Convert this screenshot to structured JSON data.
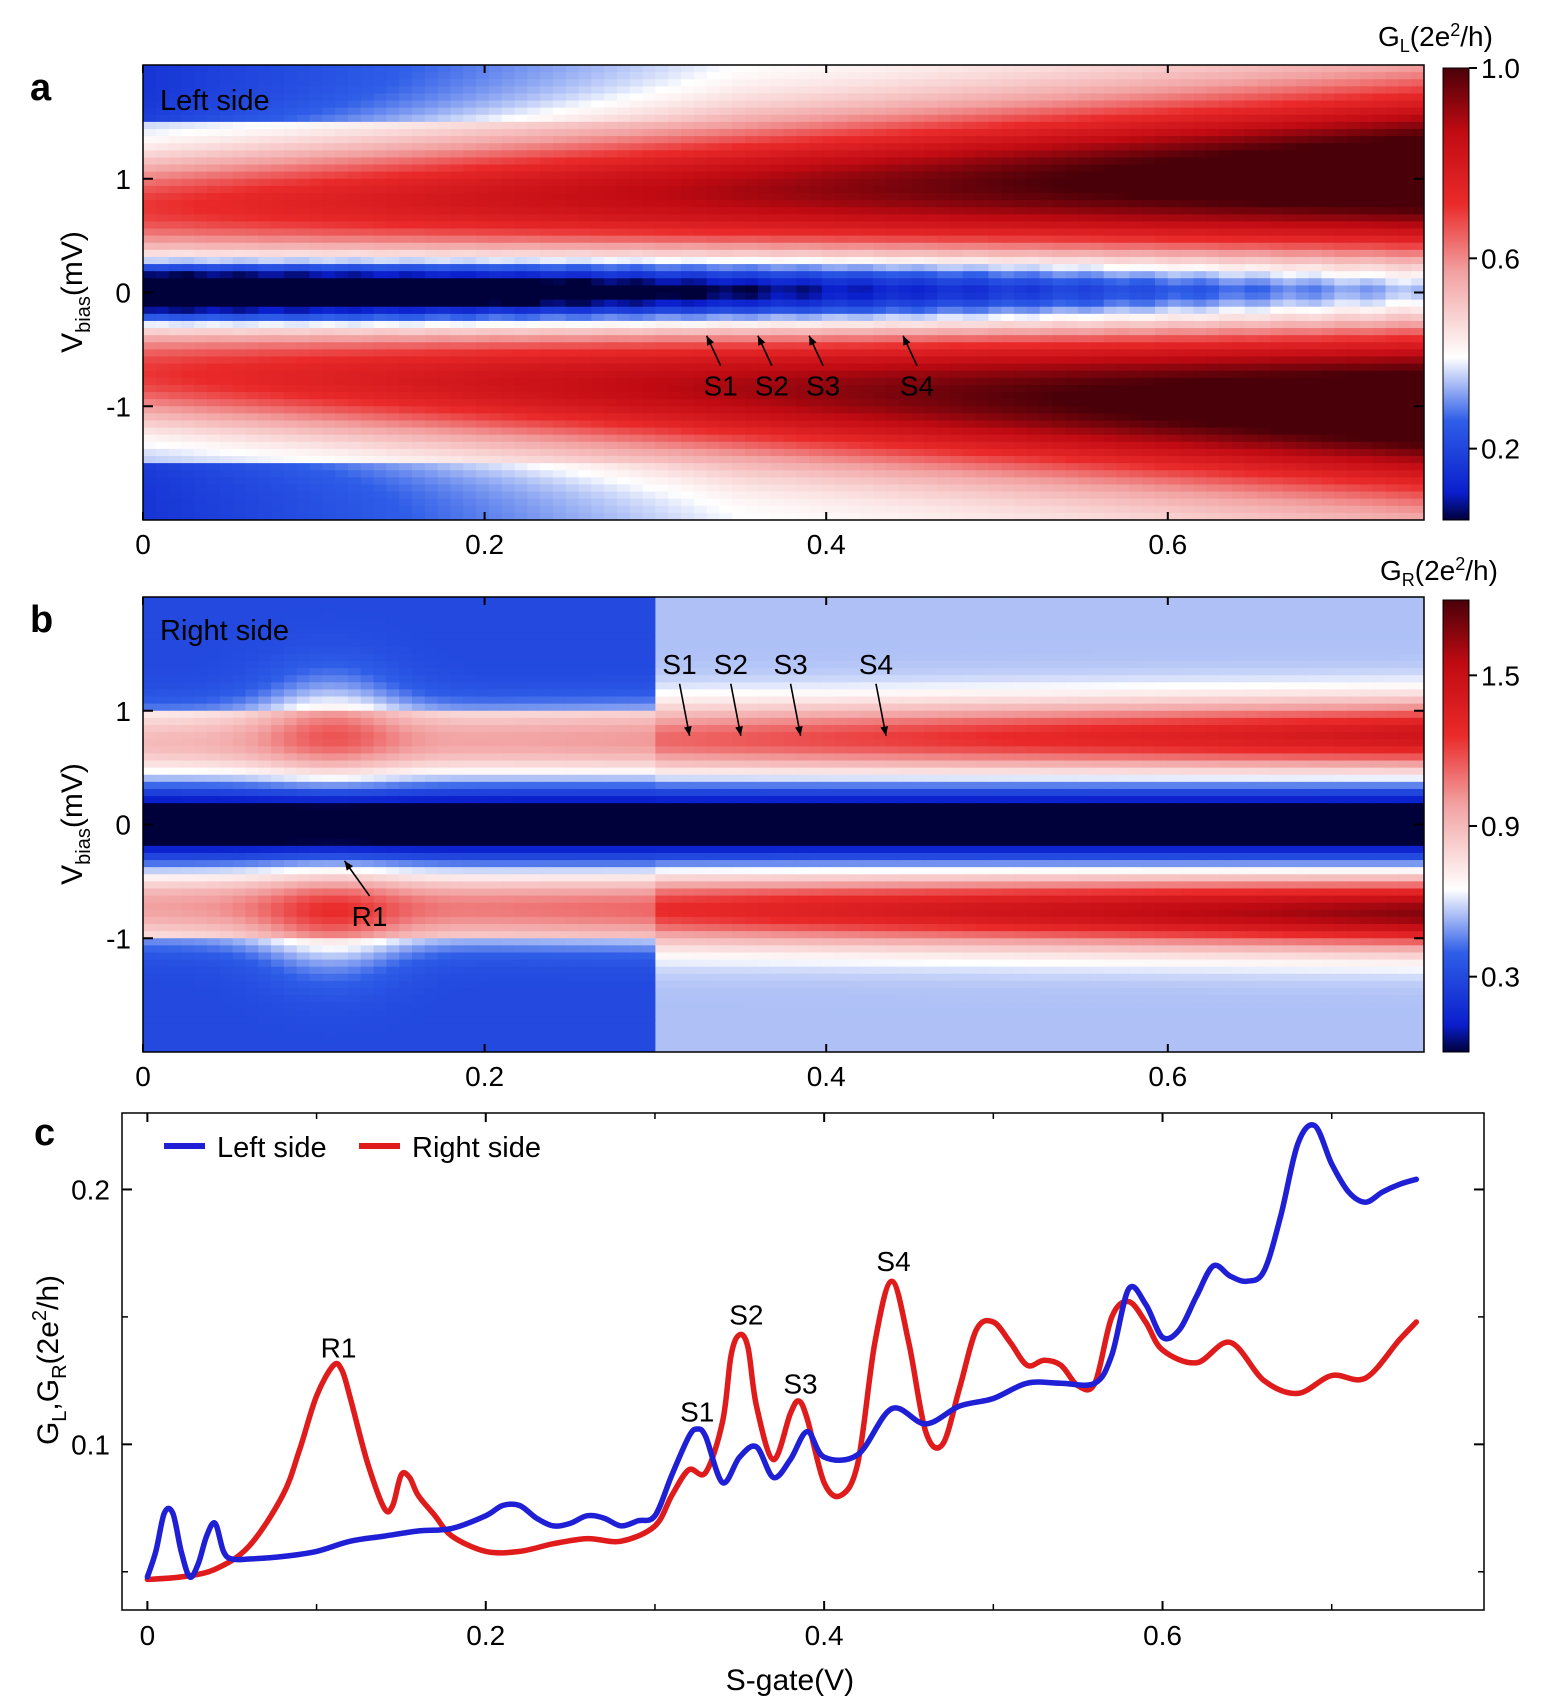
{
  "figure": {
    "panels": [
      {
        "id": "a",
        "letter": "a",
        "inset_label": "Left side",
        "cbar_title": "G",
        "cbar_sub": "L",
        "cbar_unit": "(2e",
        "cbar_sup": "2",
        "cbar_tail": "/h)"
      },
      {
        "id": "b",
        "letter": "b",
        "inset_label": "Right side",
        "cbar_title": "G",
        "cbar_sub": "R",
        "cbar_unit": "(2e",
        "cbar_sup": "2",
        "cbar_tail": "/h)"
      },
      {
        "id": "c",
        "letter": "c"
      }
    ],
    "vbias_label": {
      "main": "V",
      "sub": "bias",
      "tail": "(mV)"
    },
    "c_ylabel": {
      "g1": "G",
      "s1": "L",
      "mid": ",G",
      "s2": "R",
      "unit": "(2e",
      "sup": "2",
      "tail": "/h)"
    },
    "c_xlabel": "S-gate(V)"
  },
  "colors": {
    "blue_line": "#1f1fd6",
    "red_line": "#e01b1b",
    "cmap": [
      "#00003a",
      "#0a1ecc",
      "#2f5ee8",
      "#ffffff",
      "#f2a0a0",
      "#ea2a2a",
      "#c00a12",
      "#4a0008"
    ]
  },
  "chart_data": [
    {
      "type": "heatmap",
      "panel": "a",
      "title": "Left side",
      "xlabel": "",
      "ylabel": "Vbias(mV)",
      "xlim": [
        0,
        0.75
      ],
      "ylim": [
        -2,
        2
      ],
      "xticks": [
        0,
        0.2,
        0.4,
        0.6
      ],
      "xtick_labels": [
        "0",
        "0.2",
        "0.4",
        "0.6"
      ],
      "yticks": [
        -1,
        0,
        1
      ],
      "ytick_labels": [
        "-1",
        "0",
        "1"
      ],
      "colorbar": {
        "label": "GL(2e2/h)",
        "range": [
          0.05,
          1.0
        ],
        "ticks": [
          0.2,
          0.6,
          1.0
        ],
        "tick_labels": [
          "0.2",
          "0.6",
          "1.0"
        ]
      },
      "annotations": [
        {
          "text": "S1",
          "x": 0.33,
          "y": -0.38
        },
        {
          "text": "S2",
          "x": 0.36,
          "y": -0.38
        },
        {
          "text": "S3",
          "x": 0.39,
          "y": -0.38
        },
        {
          "text": "S4",
          "x": 0.445,
          "y": -0.38
        }
      ]
    },
    {
      "type": "heatmap",
      "panel": "b",
      "title": "Right side",
      "xlabel": "",
      "ylabel": "Vbias(mV)",
      "xlim": [
        0,
        0.75
      ],
      "ylim": [
        -2,
        2
      ],
      "xticks": [
        0,
        0.2,
        0.4,
        0.6
      ],
      "xtick_labels": [
        "0",
        "0.2",
        "0.4",
        "0.6"
      ],
      "yticks": [
        -1,
        0,
        1
      ],
      "ytick_labels": [
        "-1",
        "0",
        "1"
      ],
      "colorbar": {
        "label": "GR(2e2/h)",
        "range": [
          0.0,
          1.8
        ],
        "ticks": [
          0.3,
          0.9,
          1.5
        ],
        "tick_labels": [
          "0.3",
          "0.9",
          "1.5"
        ]
      },
      "annotations": [
        {
          "text": "S1",
          "x": 0.32,
          "y": 0.78
        },
        {
          "text": "S2",
          "x": 0.35,
          "y": 0.78
        },
        {
          "text": "S3",
          "x": 0.385,
          "y": 0.78
        },
        {
          "text": "S4",
          "x": 0.435,
          "y": 0.78
        },
        {
          "text": "R1",
          "x": 0.118,
          "y": -0.32
        }
      ]
    },
    {
      "type": "line",
      "panel": "c",
      "title": "",
      "xlabel": "S-gate(V)",
      "ylabel": "GL,GR(2e2/h)",
      "xlim": [
        -0.015,
        0.79
      ],
      "ylim": [
        0.035,
        0.23
      ],
      "xticks": [
        0,
        0.2,
        0.4,
        0.6
      ],
      "xtick_labels": [
        "0",
        "0.2",
        "0.4",
        "0.6"
      ],
      "yticks": [
        0.1,
        0.2
      ],
      "ytick_labels": [
        "0.1",
        "0.2"
      ],
      "legend": "top-left",
      "series": [
        {
          "name": "Left side",
          "color": "#1f1fd6",
          "x": [
            0,
            0.005,
            0.01,
            0.015,
            0.02,
            0.025,
            0.03,
            0.035,
            0.04,
            0.045,
            0.05,
            0.06,
            0.08,
            0.1,
            0.12,
            0.14,
            0.16,
            0.18,
            0.2,
            0.21,
            0.22,
            0.23,
            0.24,
            0.25,
            0.26,
            0.27,
            0.28,
            0.29,
            0.3,
            0.31,
            0.32,
            0.325,
            0.33,
            0.34,
            0.35,
            0.36,
            0.37,
            0.38,
            0.39,
            0.4,
            0.42,
            0.44,
            0.46,
            0.48,
            0.5,
            0.52,
            0.54,
            0.56,
            0.57,
            0.58,
            0.59,
            0.6,
            0.61,
            0.62,
            0.63,
            0.64,
            0.65,
            0.66,
            0.67,
            0.68,
            0.69,
            0.7,
            0.71,
            0.72,
            0.73,
            0.74,
            0.75
          ],
          "values": [
            0.048,
            0.058,
            0.073,
            0.073,
            0.058,
            0.048,
            0.053,
            0.064,
            0.069,
            0.058,
            0.055,
            0.055,
            0.056,
            0.058,
            0.062,
            0.064,
            0.066,
            0.067,
            0.072,
            0.076,
            0.076,
            0.071,
            0.068,
            0.069,
            0.072,
            0.071,
            0.068,
            0.07,
            0.072,
            0.088,
            0.103,
            0.106,
            0.103,
            0.085,
            0.095,
            0.099,
            0.087,
            0.094,
            0.105,
            0.095,
            0.096,
            0.114,
            0.108,
            0.115,
            0.118,
            0.124,
            0.124,
            0.124,
            0.135,
            0.161,
            0.155,
            0.142,
            0.145,
            0.158,
            0.17,
            0.166,
            0.164,
            0.168,
            0.19,
            0.218,
            0.225,
            0.21,
            0.199,
            0.195,
            0.199,
            0.202,
            0.204
          ]
        },
        {
          "name": "Right side",
          "color": "#e01b1b",
          "x": [
            0,
            0.02,
            0.04,
            0.06,
            0.08,
            0.09,
            0.1,
            0.11,
            0.115,
            0.12,
            0.13,
            0.14,
            0.145,
            0.15,
            0.155,
            0.16,
            0.17,
            0.18,
            0.2,
            0.22,
            0.24,
            0.26,
            0.28,
            0.3,
            0.31,
            0.32,
            0.33,
            0.34,
            0.345,
            0.35,
            0.355,
            0.36,
            0.37,
            0.38,
            0.385,
            0.39,
            0.4,
            0.41,
            0.42,
            0.43,
            0.44,
            0.45,
            0.46,
            0.47,
            0.48,
            0.49,
            0.5,
            0.51,
            0.52,
            0.53,
            0.54,
            0.55,
            0.56,
            0.57,
            0.58,
            0.59,
            0.6,
            0.62,
            0.64,
            0.66,
            0.68,
            0.7,
            0.72,
            0.74,
            0.75
          ],
          "values": [
            0.047,
            0.048,
            0.051,
            0.06,
            0.08,
            0.098,
            0.119,
            0.131,
            0.129,
            0.118,
            0.093,
            0.075,
            0.076,
            0.088,
            0.087,
            0.08,
            0.072,
            0.064,
            0.058,
            0.058,
            0.061,
            0.063,
            0.062,
            0.068,
            0.08,
            0.09,
            0.089,
            0.109,
            0.135,
            0.143,
            0.138,
            0.115,
            0.094,
            0.112,
            0.117,
            0.11,
            0.085,
            0.08,
            0.093,
            0.14,
            0.164,
            0.14,
            0.105,
            0.1,
            0.122,
            0.145,
            0.148,
            0.14,
            0.131,
            0.133,
            0.131,
            0.123,
            0.124,
            0.15,
            0.156,
            0.148,
            0.137,
            0.132,
            0.14,
            0.125,
            0.12,
            0.127,
            0.126,
            0.141,
            0.148
          ]
        }
      ],
      "annotations": [
        {
          "text": "R1",
          "x": 0.113,
          "y": 0.134
        },
        {
          "text": "S1",
          "x": 0.325,
          "y": 0.109
        },
        {
          "text": "S2",
          "x": 0.354,
          "y": 0.147
        },
        {
          "text": "S3",
          "x": 0.386,
          "y": 0.12
        },
        {
          "text": "S4",
          "x": 0.441,
          "y": 0.168
        }
      ]
    }
  ]
}
